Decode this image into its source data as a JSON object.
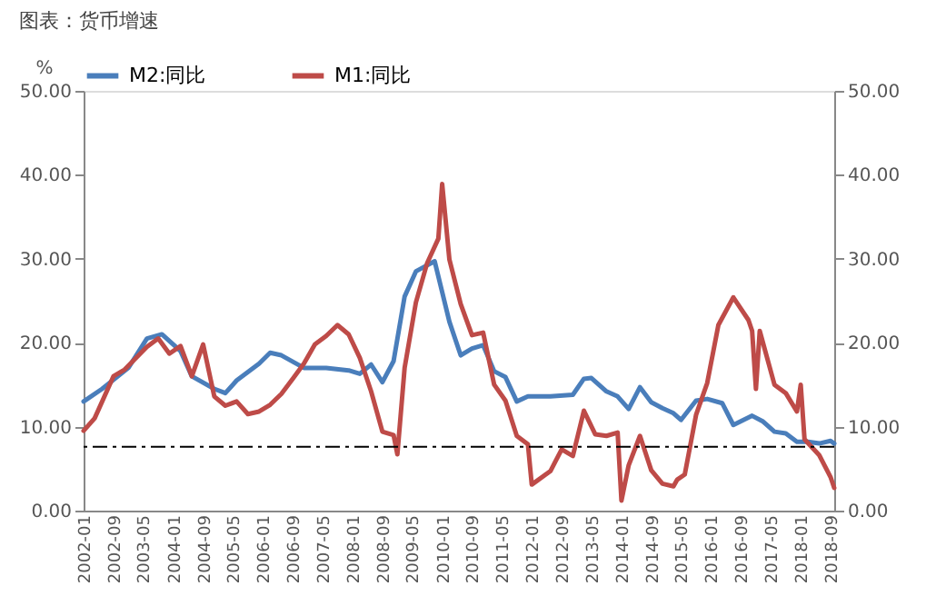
{
  "chart_data": {
    "type": "line",
    "title": "图表：货币增速",
    "ylabel": "%",
    "xlim": [
      "2002-01",
      "2018-10"
    ],
    "xticks": [
      "2002-01",
      "2002-09",
      "2003-05",
      "2004-01",
      "2004-09",
      "2005-05",
      "2006-01",
      "2006-09",
      "2007-05",
      "2008-01",
      "2008-09",
      "2009-05",
      "2010-01",
      "2010-09",
      "2011-05",
      "2012-01",
      "2012-09",
      "2013-05",
      "2014-01",
      "2014-09",
      "2015-05",
      "2016-01",
      "2016-09",
      "2017-05",
      "2018-01",
      "2018-09"
    ],
    "ylim": [
      0,
      50
    ],
    "yticks": [
      {
        "value": 0,
        "label": "0.00"
      },
      {
        "value": 10,
        "label": "10.00"
      },
      {
        "value": 20,
        "label": "20.00"
      },
      {
        "value": 30,
        "label": "30.00"
      },
      {
        "value": 40,
        "label": "40.00"
      },
      {
        "value": 50,
        "label": "50.00"
      }
    ],
    "y2lim": [
      0,
      50
    ],
    "y2ticks": [
      {
        "value": 0,
        "label": "0.00"
      },
      {
        "value": 10,
        "label": "10.00"
      },
      {
        "value": 20,
        "label": "20.00"
      },
      {
        "value": 30,
        "label": "30.00"
      },
      {
        "value": 40,
        "label": "40.00"
      },
      {
        "value": 50,
        "label": "50.00"
      }
    ],
    "grid": false,
    "legend": "top",
    "marker": "none",
    "line_style": "solid",
    "ref_lines": [
      {
        "axis": "y",
        "value": 7.6,
        "color": "#000000",
        "line_style": "dashdot"
      }
    ],
    "series": [
      {
        "name": "M2:同比",
        "color": "#4a7ebb",
        "x": [
          "2002-01",
          "2002-06",
          "2003-01",
          "2003-06",
          "2003-10",
          "2004-03",
          "2004-06",
          "2004-12",
          "2005-03",
          "2005-06",
          "2005-12",
          "2006-03",
          "2006-06",
          "2006-12",
          "2007-03",
          "2007-06",
          "2007-12",
          "2008-03",
          "2008-06",
          "2008-09",
          "2008-12",
          "2009-03",
          "2009-06",
          "2009-11",
          "2010-03",
          "2010-06",
          "2010-09",
          "2010-12",
          "2011-03",
          "2011-06",
          "2011-09",
          "2011-12",
          "2012-06",
          "2012-12",
          "2013-03",
          "2013-05",
          "2013-09",
          "2013-12",
          "2014-03",
          "2014-06",
          "2014-09",
          "2014-12",
          "2015-03",
          "2015-05",
          "2015-09",
          "2015-12",
          "2016-04",
          "2016-07",
          "2016-12",
          "2017-03",
          "2017-06",
          "2017-09",
          "2017-12",
          "2018-03",
          "2018-06",
          "2018-09",
          "2018-10"
        ],
        "values": [
          13,
          14.5,
          17,
          20.5,
          21,
          19,
          16,
          14.5,
          14,
          15.5,
          17.5,
          18.8,
          18.5,
          17,
          17,
          17,
          16.7,
          16.3,
          17.4,
          15.3,
          17.8,
          25.5,
          28.5,
          29.7,
          22.5,
          18.5,
          19.3,
          19.7,
          16.6,
          15.9,
          13,
          13.6,
          13.6,
          13.8,
          15.7,
          15.8,
          14.2,
          13.6,
          12.1,
          14.7,
          12.9,
          12.2,
          11.6,
          10.8,
          13.1,
          13.3,
          12.8,
          10.2,
          11.3,
          10.6,
          9.4,
          9.2,
          8.2,
          8.2,
          8.0,
          8.3,
          8.0
        ]
      },
      {
        "name": "M1:同比",
        "color": "#be4b48",
        "x": [
          "2002-01",
          "2002-04",
          "2002-09",
          "2002-12",
          "2003-06",
          "2003-09",
          "2003-12",
          "2004-03",
          "2004-06",
          "2004-09",
          "2004-12",
          "2005-03",
          "2005-06",
          "2005-09",
          "2005-12",
          "2006-03",
          "2006-06",
          "2006-09",
          "2006-12",
          "2007-03",
          "2007-06",
          "2007-09",
          "2007-12",
          "2008-03",
          "2008-06",
          "2008-09",
          "2008-12",
          "2009-01",
          "2009-03",
          "2009-06",
          "2009-09",
          "2009-12",
          "2010-01",
          "2010-03",
          "2010-06",
          "2010-09",
          "2010-12",
          "2011-03",
          "2011-06",
          "2011-09",
          "2011-12",
          "2012-01",
          "2012-06",
          "2012-09",
          "2012-12",
          "2013-03",
          "2013-06",
          "2013-09",
          "2013-12",
          "2014-01",
          "2014-03",
          "2014-06",
          "2014-09",
          "2014-12",
          "2015-03",
          "2015-04",
          "2015-06",
          "2015-09",
          "2015-12",
          "2016-03",
          "2016-07",
          "2016-11",
          "2016-12",
          "2017-01",
          "2017-02",
          "2017-06",
          "2017-09",
          "2017-12",
          "2018-01",
          "2018-02",
          "2018-06",
          "2018-09",
          "2018-10"
        ],
        "values": [
          9.5,
          11,
          16,
          16.8,
          19.5,
          20.5,
          18.7,
          19.6,
          16,
          19.8,
          13.6,
          12.5,
          13,
          11.5,
          11.8,
          12.6,
          13.9,
          15.7,
          17.5,
          19.8,
          20.8,
          22.1,
          21,
          18.2,
          14.2,
          9.4,
          9,
          6.7,
          17,
          24.8,
          29.5,
          32.4,
          38.9,
          29.9,
          24.6,
          20.9,
          21.2,
          15,
          13.1,
          8.9,
          7.9,
          3.1,
          4.7,
          7.3,
          6.5,
          11.9,
          9.1,
          8.9,
          9.3,
          1.2,
          5.4,
          8.9,
          4.8,
          3.2,
          2.9,
          3.7,
          4.3,
          11.4,
          15.2,
          22.1,
          25.4,
          22.7,
          21.4,
          14.5,
          21.4,
          15,
          14,
          11.8,
          15,
          8.5,
          6.6,
          4,
          2.7
        ]
      }
    ]
  }
}
